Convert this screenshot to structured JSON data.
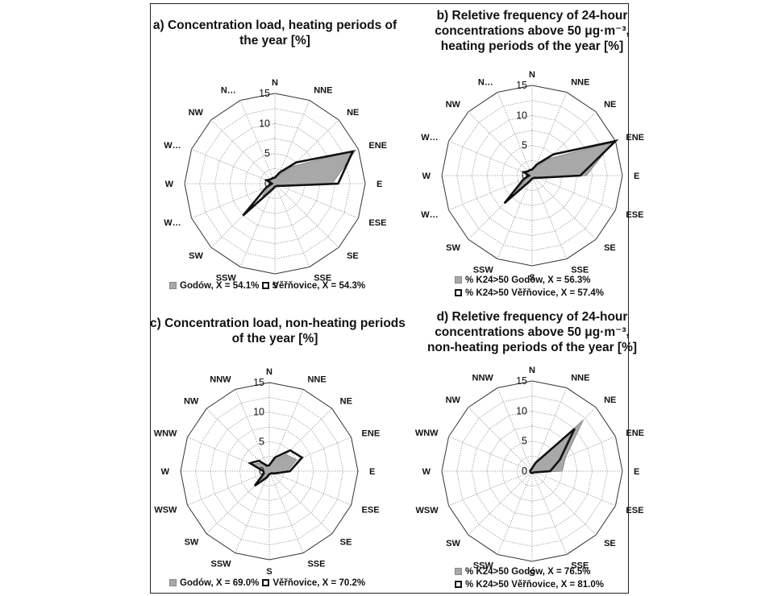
{
  "chart_data": [
    {
      "type": "radar",
      "title_lines": [
        "a) Concentration load, heating periods of",
        "the year [%]"
      ],
      "directions": [
        "N",
        "NNE",
        "NE",
        "ENE",
        "E",
        "ESE",
        "SE",
        "SSE",
        "S",
        "SSW",
        "SW",
        "W…",
        "W",
        "W…",
        "NW",
        "N…"
      ],
      "rlim": [
        0,
        15
      ],
      "ticks": [
        "0",
        "5",
        "10",
        "15"
      ],
      "series": [
        {
          "name": "Godów, X = 54.1%",
          "style": "gray-fill",
          "values": [
            1.0,
            1.5,
            4.0,
            14.5,
            9.5,
            1.0,
            0.5,
            0.5,
            0.5,
            0.8,
            3.0,
            1.0,
            0.5,
            1.0,
            1.0,
            1.0
          ]
        },
        {
          "name": "Věřňovice, X = 54.3%",
          "style": "black-outline",
          "values": [
            1.0,
            2.0,
            5.0,
            14.0,
            10.5,
            1.0,
            0.5,
            0.5,
            0.5,
            1.0,
            7.5,
            1.5,
            0.5,
            1.5,
            1.0,
            1.0
          ]
        }
      ],
      "legend_layout": "inline"
    },
    {
      "type": "radar",
      "title_lines": [
        "b) Reletive frequency of 24-hour",
        "concentrations above 50 μg·m⁻³,",
        "heating periods of the year [%]"
      ],
      "directions": [
        "N",
        "NNE",
        "NE",
        "ENE",
        "E",
        "ESE",
        "SE",
        "SSE",
        "S",
        "SSW",
        "SW",
        "W…",
        "W",
        "W…",
        "NW",
        "N…"
      ],
      "rlim": [
        0,
        15
      ],
      "ticks": [
        "0",
        "5",
        "10",
        "15"
      ],
      "series": [
        {
          "name": "% K24>50 Godów, X = 56.3%",
          "style": "gray-fill",
          "values": [
            1.0,
            1.5,
            4.0,
            14.5,
            9.0,
            1.0,
            0.5,
            0.5,
            0.5,
            0.8,
            4.0,
            1.0,
            0.5,
            1.0,
            1.0,
            1.0
          ]
        },
        {
          "name": "% K24>50 Věřňovice, X = 57.4%",
          "style": "black-outline",
          "values": [
            1.0,
            2.0,
            5.0,
            15.0,
            8.0,
            1.0,
            0.5,
            0.5,
            0.5,
            1.0,
            6.5,
            1.5,
            0.5,
            1.5,
            1.0,
            1.0
          ]
        }
      ],
      "legend_layout": "stacked"
    },
    {
      "type": "radar",
      "title_lines": [
        "c) Concentration load, non-heating periods",
        "of the year [%]"
      ],
      "directions": [
        "N",
        "NNE",
        "NE",
        "ENE",
        "E",
        "ESE",
        "SE",
        "SSE",
        "S",
        "SSW",
        "SW",
        "WSW",
        "W",
        "WNW",
        "NW",
        "NNW"
      ],
      "rlim": [
        0,
        15
      ],
      "ticks": [
        "0",
        "5",
        "10",
        "15"
      ],
      "series": [
        {
          "name": "Godów, X = 69.0%",
          "style": "gray-fill",
          "values": [
            1.0,
            2.0,
            4.0,
            5.0,
            3.0,
            1.0,
            0.5,
            0.5,
            0.5,
            1.0,
            2.0,
            1.0,
            1.0,
            3.0,
            2.0,
            1.0
          ]
        },
        {
          "name": "Věřňovice, X = 70.2%",
          "style": "black-outline",
          "values": [
            1.0,
            2.5,
            5.0,
            6.0,
            3.5,
            1.0,
            0.5,
            0.5,
            0.5,
            1.2,
            3.5,
            1.0,
            1.0,
            3.5,
            2.5,
            1.0
          ]
        }
      ],
      "legend_layout": "inline"
    },
    {
      "type": "radar",
      "title_lines": [
        "d) Reletive frequency of 24-hour",
        "concentrations above 50 μg·m⁻³,",
        "non-heating periods of the year [%]"
      ],
      "directions": [
        "N",
        "NNE",
        "NE",
        "ENE",
        "E",
        "ESE",
        "SE",
        "SSE",
        "S",
        "SSW",
        "SW",
        "WSW",
        "W",
        "WNW",
        "NW",
        "NNW"
      ],
      "rlim": [
        0,
        15
      ],
      "ticks": [
        "0",
        "5",
        "10",
        "15"
      ],
      "series": [
        {
          "name": "% K24>50 Godów, X = 76.5%",
          "style": "gray-fill",
          "values": [
            0.5,
            1.5,
            12.0,
            6.0,
            5.0,
            0.5,
            0.3,
            0.3,
            0.3,
            0.3,
            0.3,
            0.3,
            0.3,
            0.3,
            0.3,
            0.3
          ]
        },
        {
          "name": "% K24>50 Věřňovice, X = 81.0%",
          "style": "black-outline",
          "values": [
            0.5,
            1.5,
            10.0,
            5.0,
            3.0,
            0.5,
            0.3,
            0.3,
            0.3,
            0.3,
            0.3,
            0.3,
            0.3,
            0.3,
            0.3,
            0.3
          ]
        }
      ],
      "legend_layout": "stacked"
    }
  ]
}
